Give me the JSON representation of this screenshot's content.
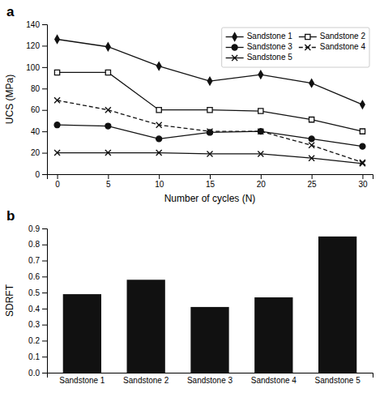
{
  "chart_data": [
    {
      "type": "line",
      "x": [
        0,
        5,
        10,
        15,
        20,
        25,
        30
      ],
      "xlim": [
        -1,
        31
      ],
      "xticks": [
        0,
        5,
        10,
        15,
        20,
        25,
        30
      ],
      "ylim": [
        0,
        140
      ],
      "yticks": [
        0,
        20,
        40,
        60,
        80,
        100,
        120,
        140
      ],
      "x_label": "Number of cycles (N)",
      "y_label": "UCS (MPa)",
      "annotations": [
        "a"
      ],
      "legend": "upper right",
      "grid": false,
      "series": [
        {
          "name": "Sandstone 1",
          "color": "#111111",
          "marker": "diamond",
          "line_style": "solid",
          "values": [
            126,
            119,
            101,
            87,
            93,
            85,
            65
          ]
        },
        {
          "name": "Sandstone 2",
          "color": "#111111",
          "marker": "square-open",
          "line_style": "solid",
          "values": [
            95,
            95,
            60,
            60,
            59,
            51,
            40
          ]
        },
        {
          "name": "Sandstone 3",
          "color": "#111111",
          "marker": "circle",
          "line_style": "solid",
          "values": [
            46,
            45,
            33,
            39,
            40,
            33,
            26
          ]
        },
        {
          "name": "Sandstone 4",
          "color": "#111111",
          "marker": "x",
          "line_style": "dashed",
          "values": [
            69,
            60,
            46,
            40,
            40,
            27,
            11
          ]
        },
        {
          "name": "Sandstone 5",
          "color": "#111111",
          "marker": "x",
          "line_style": "solid",
          "values": [
            20,
            20,
            20,
            19,
            19,
            15,
            10
          ]
        }
      ]
    },
    {
      "type": "bar",
      "categories": [
        "Sandstone 1",
        "Sandstone 2",
        "Sandstone 3",
        "Sandstone 4",
        "Sandstone 5"
      ],
      "values": [
        0.49,
        0.58,
        0.41,
        0.47,
        0.85
      ],
      "color": "#111111",
      "ylim": [
        0,
        0.9
      ],
      "yticks": [
        {
          "value": 0,
          "label": "0.0"
        },
        0.1,
        0.2,
        0.3,
        0.4,
        0.5,
        0.6,
        0.7,
        0.8,
        0.9
      ],
      "y_label": "SDRFT",
      "annotations": [
        "b"
      ],
      "grid": false
    }
  ]
}
